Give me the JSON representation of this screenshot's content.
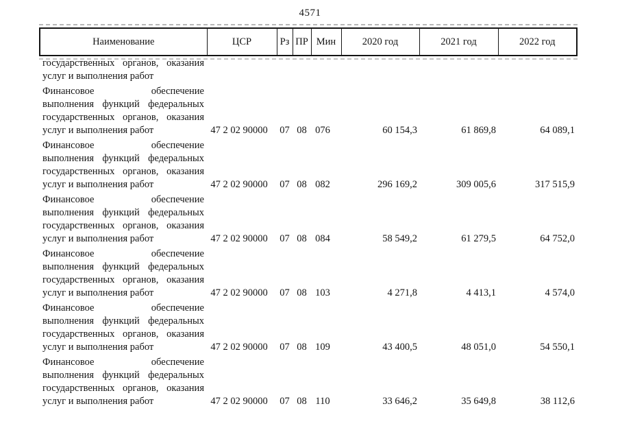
{
  "page": {
    "number": "4571",
    "paper_color": "#ffffff",
    "ink_color": "#141414",
    "scanline_color": "#b8b8b8"
  },
  "table": {
    "columns": [
      {
        "key": "name",
        "label": "Наименование"
      },
      {
        "key": "csr",
        "label": "ЦСР"
      },
      {
        "key": "rz",
        "label": "Рз"
      },
      {
        "key": "pr",
        "label": "ПР"
      },
      {
        "key": "min",
        "label": "Мин"
      },
      {
        "key": "y2020",
        "label": "2020 год"
      },
      {
        "key": "y2021",
        "label": "2021 год"
      },
      {
        "key": "y2022",
        "label": "2022 год"
      }
    ],
    "carryover_row": {
      "name_lines": [
        "государственных органов, оказания",
        "услуг и выполнения работ"
      ],
      "csr": "",
      "rz": "",
      "pr": "",
      "min": "",
      "y2020": "",
      "y2021": "",
      "y2022": ""
    },
    "rows": [
      {
        "name_lines": [
          "Финансовое обеспечение",
          "выполнения функций федеральных",
          "государственных органов, оказания",
          "услуг и выполнения работ"
        ],
        "csr": "47 2 02 90000",
        "rz": "07",
        "pr": "08",
        "min": "076",
        "y2020": "60 154,3",
        "y2021": "61 869,8",
        "y2022": "64 089,1"
      },
      {
        "name_lines": [
          "Финансовое обеспечение",
          "выполнения функций федеральных",
          "государственных органов, оказания",
          "услуг и выполнения работ"
        ],
        "csr": "47 2 02 90000",
        "rz": "07",
        "pr": "08",
        "min": "082",
        "y2020": "296 169,2",
        "y2021": "309 005,6",
        "y2022": "317 515,9"
      },
      {
        "name_lines": [
          "Финансовое обеспечение",
          "выполнения функций федеральных",
          "государственных органов, оказания",
          "услуг и выполнения работ"
        ],
        "csr": "47 2 02 90000",
        "rz": "07",
        "pr": "08",
        "min": "084",
        "y2020": "58 549,2",
        "y2021": "61 279,5",
        "y2022": "64 752,0"
      },
      {
        "name_lines": [
          "Финансовое обеспечение",
          "выполнения функций федеральных",
          "государственных органов, оказания",
          "услуг и выполнения работ"
        ],
        "csr": "47 2 02 90000",
        "rz": "07",
        "pr": "08",
        "min": "103",
        "y2020": "4 271,8",
        "y2021": "4 413,1",
        "y2022": "4 574,0"
      },
      {
        "name_lines": [
          "Финансовое обеспечение",
          "выполнения функций федеральных",
          "государственных органов, оказания",
          "услуг и выполнения работ"
        ],
        "csr": "47 2 02 90000",
        "rz": "07",
        "pr": "08",
        "min": "109",
        "y2020": "43 400,5",
        "y2021": "48 051,0",
        "y2022": "54 550,1"
      },
      {
        "name_lines": [
          "Финансовое обеспечение",
          "выполнения функций федеральных",
          "государственных органов, оказания",
          "услуг и выполнения работ"
        ],
        "csr": "47 2 02 90000",
        "rz": "07",
        "pr": "08",
        "min": "110",
        "y2020": "33 646,2",
        "y2021": "35 649,8",
        "y2022": "38 112,6"
      }
    ]
  }
}
